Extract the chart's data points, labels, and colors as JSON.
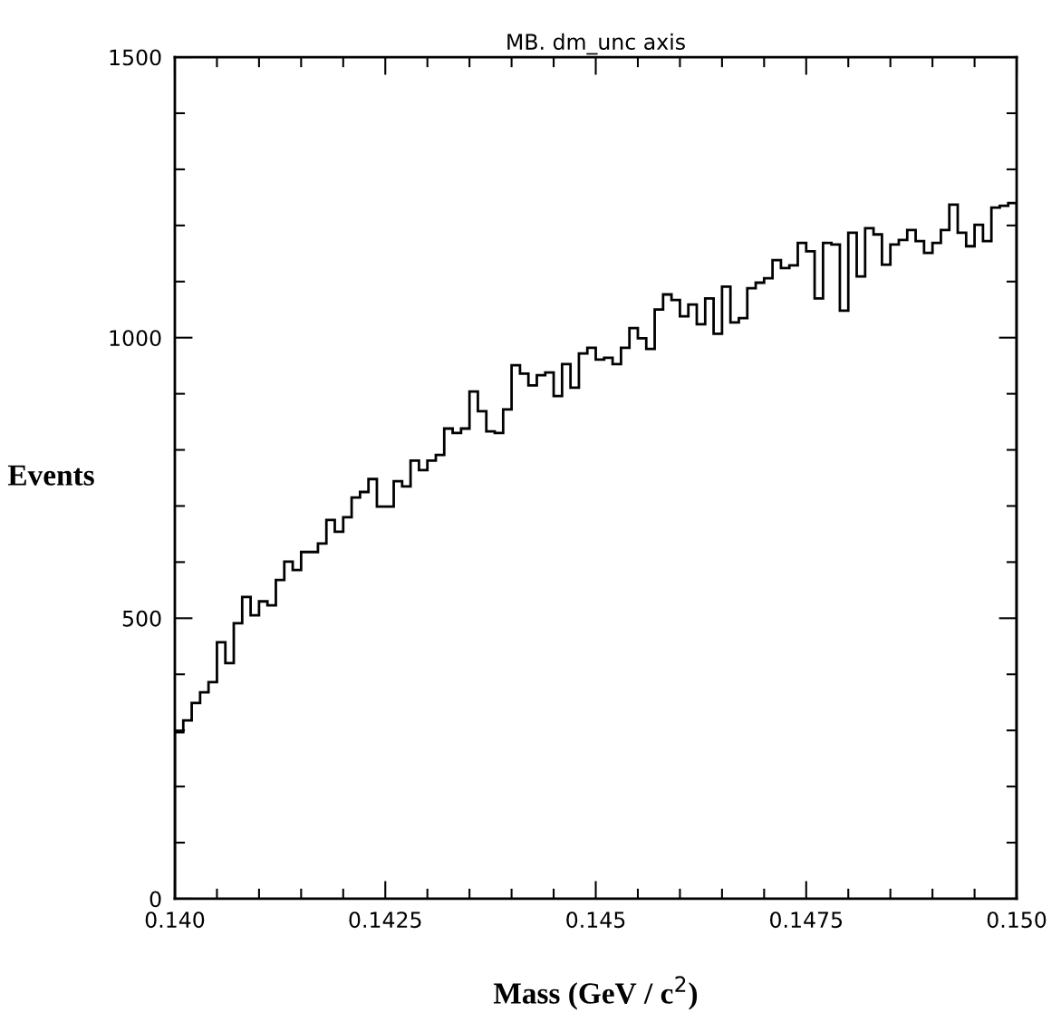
{
  "chart_data": {
    "type": "histogram",
    "title": "MB. dm_unc axis",
    "xlabel": "Mass (GeV / c$^{2}$)",
    "ylabel": "Events",
    "bins": [
      0.14,
      0.1401,
      0.1402,
      0.1403,
      0.1404,
      0.1405,
      0.1406,
      0.1407,
      0.1408,
      0.1409,
      0.141,
      0.1411,
      0.1412,
      0.1413,
      0.1414,
      0.1415,
      0.1416,
      0.1417,
      0.1418,
      0.1419,
      0.142,
      0.1421,
      0.1422,
      0.1423,
      0.1424,
      0.1425,
      0.1426,
      0.1427,
      0.1428,
      0.1429,
      0.143,
      0.1431,
      0.1432,
      0.1433,
      0.1434,
      0.1435,
      0.1436,
      0.1437,
      0.1438,
      0.1439,
      0.144,
      0.1441,
      0.1442,
      0.1443,
      0.1444,
      0.1445,
      0.1446,
      0.1447,
      0.1448,
      0.1449,
      0.145,
      0.1451,
      0.1452,
      0.1453,
      0.1454,
      0.1455,
      0.1456,
      0.1457,
      0.1458,
      0.1459,
      0.146,
      0.1461,
      0.1462,
      0.1463,
      0.1464,
      0.1465,
      0.1466,
      0.1467,
      0.1468,
      0.1469,
      0.147,
      0.1471,
      0.1472,
      0.1473,
      0.1474,
      0.1475,
      0.1476,
      0.1477,
      0.1478,
      0.1479,
      0.148,
      0.1481,
      0.1482,
      0.1483,
      0.1484,
      0.1485,
      0.1486,
      0.1487,
      0.1488,
      0.1489,
      0.149,
      0.1491,
      0.1492,
      0.1493,
      0.1494,
      0.1495,
      0.1496,
      0.1497,
      0.1498,
      0.1499,
      0.15
    ],
    "values": [
      297,
      318,
      349,
      368,
      386,
      457,
      420,
      491,
      538,
      505,
      530,
      523,
      568,
      601,
      586,
      618,
      618,
      633,
      675,
      654,
      680,
      715,
      725,
      748,
      699,
      699,
      744,
      735,
      781,
      764,
      781,
      791,
      838,
      830,
      838,
      904,
      869,
      833,
      830,
      872,
      951,
      936,
      915,
      933,
      938,
      896,
      953,
      911,
      972,
      982,
      961,
      964,
      953,
      982,
      1017,
      999,
      980,
      1050,
      1077,
      1067,
      1038,
      1059,
      1024,
      1070,
      1007,
      1091,
      1027,
      1035,
      1088,
      1098,
      1106,
      1138,
      1124,
      1129,
      1169,
      1154,
      1070,
      1169,
      1166,
      1048,
      1187,
      1109,
      1195,
      1184,
      1130,
      1166,
      1174,
      1192,
      1172,
      1151,
      1169,
      1192,
      1237,
      1187,
      1163,
      1201,
      1172,
      1232,
      1235,
      1240
    ],
    "color": "#000000",
    "xlim": [
      0.14,
      0.15
    ],
    "ylim": [
      0,
      1500
    ],
    "xticks": [
      {
        "value": 0.14,
        "label": "0.140"
      },
      {
        "value": 0.1405,
        "label": null
      },
      {
        "value": 0.141,
        "label": null
      },
      {
        "value": 0.1415,
        "label": null
      },
      {
        "value": 0.142,
        "label": null
      },
      0.1425,
      {
        "value": 0.143,
        "label": null
      },
      {
        "value": 0.1435,
        "label": null
      },
      {
        "value": 0.144,
        "label": null
      },
      {
        "value": 0.1445,
        "label": null
      },
      0.145,
      {
        "value": 0.1455,
        "label": null
      },
      {
        "value": 0.146,
        "label": null
      },
      {
        "value": 0.1465,
        "label": null
      },
      {
        "value": 0.147,
        "label": null
      },
      0.1475,
      {
        "value": 0.148,
        "label": null
      },
      {
        "value": 0.1485,
        "label": null
      },
      {
        "value": 0.149,
        "label": null
      },
      {
        "value": 0.1495,
        "label": null
      },
      {
        "value": 0.15,
        "label": "0.150"
      }
    ],
    "yticks": [
      0,
      {
        "value": 100,
        "label": null
      },
      {
        "value": 200,
        "label": null
      },
      {
        "value": 300,
        "label": null
      },
      {
        "value": 400,
        "label": null
      },
      500,
      {
        "value": 600,
        "label": null
      },
      {
        "value": 700,
        "label": null
      },
      {
        "value": 800,
        "label": null
      },
      {
        "value": 900,
        "label": null
      },
      1000,
      {
        "value": 1100,
        "label": null
      },
      {
        "value": 1200,
        "label": null
      },
      {
        "value": 1300,
        "label": null
      },
      {
        "value": 1400,
        "label": null
      },
      1500
    ],
    "grid": false
  }
}
